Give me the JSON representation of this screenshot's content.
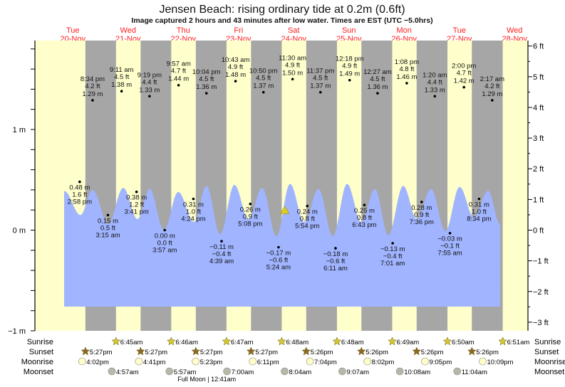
{
  "chart_data": {
    "type": "area",
    "title": "Jensen Beach: rising  ordinary tide at 0.2m (0.6ft)",
    "subtitle": "Image captured 2 hours and 43 minutes after low water. Times are EST (UTC −5.0hrs)",
    "days": [
      {
        "dow": "Tue",
        "date": "20-Nov"
      },
      {
        "dow": "Wed",
        "date": "21-Nov"
      },
      {
        "dow": "Thu",
        "date": "22-Nov"
      },
      {
        "dow": "Fri",
        "date": "23-Nov"
      },
      {
        "dow": "Sat",
        "date": "24-Nov"
      },
      {
        "dow": "Sun",
        "date": "25-Nov"
      },
      {
        "dow": "Mon",
        "date": "26-Nov"
      },
      {
        "dow": "Tue",
        "date": "27-Nov"
      },
      {
        "dow": "Wed",
        "date": "28-Nov"
      }
    ],
    "y_left": {
      "unit": "m",
      "ylim": [
        -1,
        1.9
      ],
      "ticks": [
        {
          "v": 1,
          "label": "1 m"
        },
        {
          "v": 0,
          "label": "0 m"
        },
        {
          "v": -1,
          "label": "−1 m"
        }
      ]
    },
    "y_right": {
      "unit": "ft",
      "ticks": [
        {
          "v": 6,
          "label": "6 ft"
        },
        {
          "v": 5,
          "label": "5 ft"
        },
        {
          "v": 4,
          "label": "4 ft"
        },
        {
          "v": 3,
          "label": "3 ft"
        },
        {
          "v": 2,
          "label": "2 ft"
        },
        {
          "v": 1,
          "label": "1 ft"
        },
        {
          "v": 0,
          "label": "0 ft"
        },
        {
          "v": -1,
          "label": "−1 ft"
        },
        {
          "v": -2,
          "label": "−2 ft"
        },
        {
          "v": -3,
          "label": "−3 ft"
        }
      ]
    },
    "tide_curve_hours_m": [
      [
        8.2,
        0.39
      ],
      [
        15.3,
        0.15
      ],
      [
        20.6,
        0.4
      ],
      [
        27.4,
        0.06
      ],
      [
        33.9,
        0.42
      ],
      [
        40.1,
        0.11
      ],
      [
        45.4,
        0.41
      ],
      [
        51.6,
        0.0
      ],
      [
        57.8,
        0.38
      ],
      [
        64.6,
        0.08
      ],
      [
        70.1,
        0.44
      ],
      [
        76.0,
        -0.04
      ],
      [
        82.2,
        0.45
      ],
      [
        88.4,
        0.11
      ],
      [
        94.3,
        0.42
      ],
      [
        100.5,
        -0.06
      ],
      [
        106.4,
        0.46
      ],
      [
        112.6,
        0.08
      ],
      [
        118.8,
        0.41
      ],
      [
        125.0,
        -0.06
      ],
      [
        131.2,
        0.46
      ],
      [
        137.4,
        0.08
      ],
      [
        143.3,
        0.41
      ],
      [
        149.1,
        -0.05
      ],
      [
        155.6,
        0.44
      ],
      [
        161.5,
        0.11
      ],
      [
        167.7,
        0.41
      ],
      [
        173.9,
        -0.01
      ],
      [
        180.1,
        0.43
      ],
      [
        186.3,
        0.13
      ],
      [
        192.5,
        0.39
      ],
      [
        197.7,
        0.06
      ]
    ],
    "curve_base_m": -0.76,
    "current": {
      "day": 4,
      "time": "8:07 am",
      "m": 0.2
    },
    "extremes": [
      {
        "day": 0,
        "time": "2:58 pm",
        "m": "0.48 m",
        "ft": "1.6 ft",
        "v": 0.48,
        "pos": "below"
      },
      {
        "day": 0,
        "time": "8:34 pm",
        "m": "1.29 m",
        "ft": "4.2 ft",
        "v": 1.29,
        "pos": "above"
      },
      {
        "day": 1,
        "time": "3:15 am",
        "m": "0.15 m",
        "ft": "0.5 ft",
        "v": 0.15,
        "pos": "below"
      },
      {
        "day": 1,
        "time": "9:11 am",
        "m": "1.38 m",
        "ft": "4.5 ft",
        "v": 1.38,
        "pos": "above"
      },
      {
        "day": 1,
        "time": "3:41 pm",
        "m": "0.38 m",
        "ft": "1.2 ft",
        "v": 0.38,
        "pos": "below"
      },
      {
        "day": 1,
        "time": "9:19 pm",
        "m": "1.33 m",
        "ft": "4.4 ft",
        "v": 1.33,
        "pos": "above"
      },
      {
        "day": 2,
        "time": "3:57 am",
        "m": "0.00 m",
        "ft": "0.0 ft",
        "v": 0.0,
        "pos": "below"
      },
      {
        "day": 2,
        "time": "9:57 am",
        "m": "1.44 m",
        "ft": "4.7 ft",
        "v": 1.44,
        "pos": "above"
      },
      {
        "day": 2,
        "time": "4:24 pm",
        "m": "0.31 m",
        "ft": "1.0 ft",
        "v": 0.31,
        "pos": "below"
      },
      {
        "day": 2,
        "time": "10:04 pm",
        "m": "1.36 m",
        "ft": "4.5 ft",
        "v": 1.36,
        "pos": "above"
      },
      {
        "day": 3,
        "time": "4:39 am",
        "m": "−0.11 m",
        "ft": "−0.4 ft",
        "v": -0.11,
        "pos": "below"
      },
      {
        "day": 3,
        "time": "10:43 am",
        "m": "1.48 m",
        "ft": "4.9 ft",
        "v": 1.48,
        "pos": "above"
      },
      {
        "day": 3,
        "time": "5:08 pm",
        "m": "0.26 m",
        "ft": "0.9 ft",
        "v": 0.26,
        "pos": "below"
      },
      {
        "day": 3,
        "time": "10:50 pm",
        "m": "1.37 m",
        "ft": "4.5 ft",
        "v": 1.37,
        "pos": "above"
      },
      {
        "day": 4,
        "time": "5:24 am",
        "m": "−0.17 m",
        "ft": "−0.6 ft",
        "v": -0.17,
        "pos": "below"
      },
      {
        "day": 4,
        "time": "11:30 am",
        "m": "1.50 m",
        "ft": "4.9 ft",
        "v": 1.5,
        "pos": "above"
      },
      {
        "day": 4,
        "time": "5:54 pm",
        "m": "0.24 m",
        "ft": "0.8 ft",
        "v": 0.24,
        "pos": "below"
      },
      {
        "day": 4,
        "time": "11:37 pm",
        "m": "1.37 m",
        "ft": "4.5 ft",
        "v": 1.37,
        "pos": "above"
      },
      {
        "day": 5,
        "time": "6:11 am",
        "m": "−0.18 m",
        "ft": "−0.6 ft",
        "v": -0.18,
        "pos": "below"
      },
      {
        "day": 5,
        "time": "12:18 pm",
        "m": "1.49 m",
        "ft": "4.9 ft",
        "v": 1.49,
        "pos": "above"
      },
      {
        "day": 5,
        "time": "6:43 pm",
        "m": "0.25 m",
        "ft": "0.8 ft",
        "v": 0.25,
        "pos": "below"
      },
      {
        "day": 6,
        "time": "12:27 am",
        "m": "1.36 m",
        "ft": "4.5 ft",
        "v": 1.36,
        "pos": "above"
      },
      {
        "day": 6,
        "time": "7:01 am",
        "m": "−0.13 m",
        "ft": "−0.4 ft",
        "v": -0.13,
        "pos": "below"
      },
      {
        "day": 6,
        "time": "1:08 pm",
        "m": "1.46 m",
        "ft": "4.8 ft",
        "v": 1.46,
        "pos": "above"
      },
      {
        "day": 6,
        "time": "7:36 pm",
        "m": "0.28 m",
        "ft": "0.9 ft",
        "v": 0.28,
        "pos": "below"
      },
      {
        "day": 7,
        "time": "1:20 am",
        "m": "1.33 m",
        "ft": "4.4 ft",
        "v": 1.33,
        "pos": "above"
      },
      {
        "day": 7,
        "time": "7:55 am",
        "m": "−0.03 m",
        "ft": "−0.1 ft",
        "v": -0.03,
        "pos": "below"
      },
      {
        "day": 7,
        "time": "2:00 pm",
        "m": "1.42 m",
        "ft": "4.7 ft",
        "v": 1.42,
        "pos": "above"
      },
      {
        "day": 7,
        "time": "8:34 pm",
        "m": "0.31 m",
        "ft": "1.0 ft",
        "v": 0.31,
        "pos": "below"
      },
      {
        "day": 8,
        "time": "2:17 am",
        "m": "1.29 m",
        "ft": "4.2 ft",
        "v": 1.29,
        "pos": "above"
      }
    ],
    "row_labels": {
      "sunrise": "Sunrise",
      "sunset": "Sunset",
      "moonrise": "Moonrise",
      "moonset": "Moonset"
    },
    "sunrise": [
      {
        "day": 1,
        "t": "6:45am"
      },
      {
        "day": 2,
        "t": "6:46am"
      },
      {
        "day": 3,
        "t": "6:47am"
      },
      {
        "day": 4,
        "t": "6:48am"
      },
      {
        "day": 5,
        "t": "6:48am"
      },
      {
        "day": 6,
        "t": "6:49am"
      },
      {
        "day": 7,
        "t": "6:50am"
      },
      {
        "day": 8,
        "t": "6:51am"
      }
    ],
    "sunset": [
      {
        "day": 0,
        "t": "5:27pm"
      },
      {
        "day": 1,
        "t": "5:27pm"
      },
      {
        "day": 2,
        "t": "5:27pm"
      },
      {
        "day": 3,
        "t": "5:27pm"
      },
      {
        "day": 4,
        "t": "5:26pm"
      },
      {
        "day": 5,
        "t": "5:26pm"
      },
      {
        "day": 6,
        "t": "5:26pm"
      },
      {
        "day": 7,
        "t": "5:26pm"
      }
    ],
    "moonrise": [
      {
        "day": 0,
        "t": "4:02pm"
      },
      {
        "day": 1,
        "t": "4:41pm"
      },
      {
        "day": 2,
        "t": "5:23pm"
      },
      {
        "day": 3,
        "t": "6:11pm"
      },
      {
        "day": 4,
        "t": "7:04pm"
      },
      {
        "day": 5,
        "t": "8:02pm"
      },
      {
        "day": 6,
        "t": "9:05pm"
      },
      {
        "day": 7,
        "t": "10:09pm"
      }
    ],
    "moonset": [
      {
        "day": 1,
        "t": "4:57am"
      },
      {
        "day": 2,
        "t": "5:57am"
      },
      {
        "day": 3,
        "t": "7:00am"
      },
      {
        "day": 4,
        "t": "8:04am"
      },
      {
        "day": 5,
        "t": "9:07am"
      },
      {
        "day": 6,
        "t": "10:08am"
      },
      {
        "day": 7,
        "t": "11:04am"
      }
    ],
    "full_moon": {
      "day": 3,
      "t": "12:41am",
      "label": "Full Moon | 12:41am"
    },
    "colors": {
      "day": "#ffffcc",
      "night": "#a6a6a6",
      "water": "#a0b4ff",
      "day_label": "#ff2020",
      "sunrise": "#d4c830",
      "sunset": "#8a6a20",
      "moonrise": "#ffffc8",
      "moonset": "#b8b8a8"
    }
  }
}
